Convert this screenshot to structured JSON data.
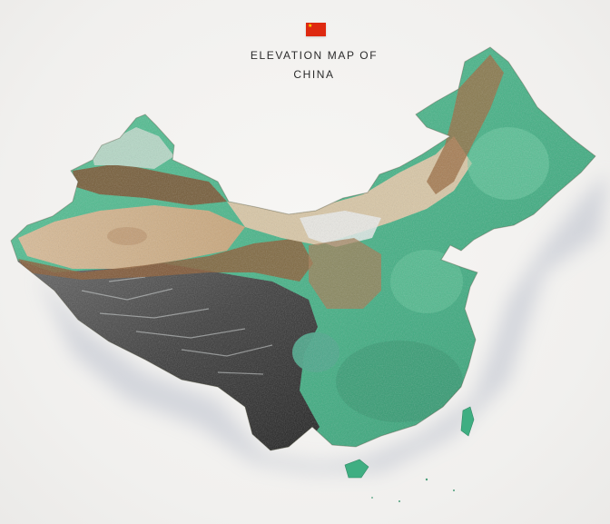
{
  "header": {
    "flag_icon": "china-flag-icon",
    "flag_color": "#de2910",
    "title_line_1": "ELEVATION MAP OF",
    "title_line_2": "CHINA"
  },
  "map": {
    "subject": "china-relief-map",
    "colors": {
      "lowland_green": "#46b98a",
      "desert_tan": "#d4b48e",
      "mountain_brown": "#8a5a34",
      "plateau_dark": "#3a3a3a",
      "snow_white": "#e8ecec",
      "background": "#f3f2f0"
    }
  }
}
